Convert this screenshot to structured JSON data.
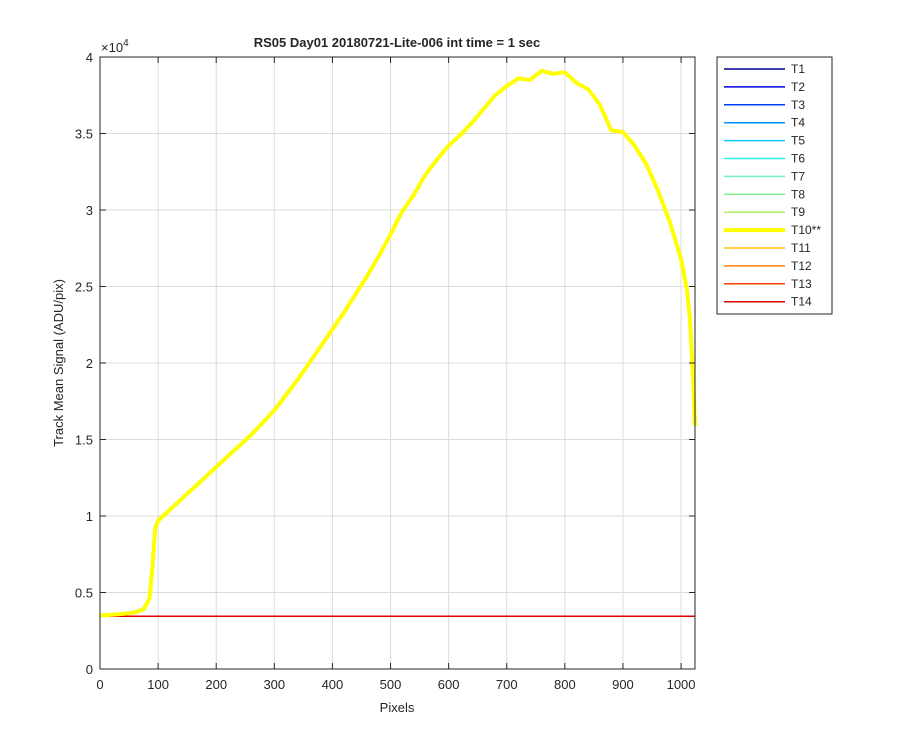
{
  "chart_data": {
    "type": "line",
    "title": "RS05 Day01 20180721-Lite-006 int time = 1 sec",
    "xlabel": "Pixels",
    "ylabel": "Track Mean Signal (ADU/pix)",
    "xlim": [
      0,
      1024
    ],
    "ylim": [
      0,
      40000
    ],
    "y_exponent_label": "×10",
    "y_exponent_power": "4",
    "xticks": [
      0,
      100,
      200,
      300,
      400,
      500,
      600,
      700,
      800,
      900,
      1000
    ],
    "xtick_labels": [
      "0",
      "100",
      "200",
      "300",
      "400",
      "500",
      "600",
      "700",
      "800",
      "900",
      "1000"
    ],
    "yticks": [
      0,
      5000,
      10000,
      15000,
      20000,
      25000,
      30000,
      35000,
      40000
    ],
    "ytick_labels": [
      "0",
      "0.5",
      "1",
      "1.5",
      "2",
      "2.5",
      "3",
      "3.5",
      "4"
    ],
    "grid": true,
    "legend_position": "outside-right",
    "series": [
      {
        "name": "T1",
        "color": "#00008f",
        "width": 1.5,
        "x": [
          0,
          1024
        ],
        "y": [
          3450,
          3450
        ]
      },
      {
        "name": "T2",
        "color": "#0000e0",
        "width": 1.5,
        "x": [
          0,
          1024
        ],
        "y": [
          3450,
          3450
        ]
      },
      {
        "name": "T3",
        "color": "#0040ff",
        "width": 1.5,
        "x": [
          0,
          1024
        ],
        "y": [
          3450,
          3450
        ]
      },
      {
        "name": "T4",
        "color": "#0090ff",
        "width": 1.5,
        "x": [
          0,
          1024
        ],
        "y": [
          3450,
          3450
        ]
      },
      {
        "name": "T5",
        "color": "#10c8ff",
        "width": 1.5,
        "x": [
          0,
          1024
        ],
        "y": [
          3450,
          3450
        ]
      },
      {
        "name": "T6",
        "color": "#30f0f0",
        "width": 1.5,
        "x": [
          0,
          1024
        ],
        "y": [
          3450,
          3450
        ]
      },
      {
        "name": "T7",
        "color": "#70f0c8",
        "width": 1.5,
        "x": [
          0,
          1024
        ],
        "y": [
          3450,
          3450
        ]
      },
      {
        "name": "T8",
        "color": "#80f090",
        "width": 1.5,
        "x": [
          0,
          1024
        ],
        "y": [
          3450,
          3450
        ]
      },
      {
        "name": "T9",
        "color": "#b0f060",
        "width": 1.5,
        "x": [
          0,
          1024
        ],
        "y": [
          3450,
          3450
        ]
      },
      {
        "name": "T10**",
        "color": "#ffff00",
        "width": 4,
        "x": [
          0,
          20,
          40,
          60,
          75,
          85,
          90,
          95,
          100,
          120,
          140,
          160,
          180,
          200,
          220,
          240,
          260,
          280,
          300,
          320,
          340,
          360,
          380,
          400,
          420,
          440,
          460,
          480,
          500,
          520,
          540,
          560,
          580,
          600,
          620,
          640,
          660,
          680,
          700,
          720,
          740,
          760,
          780,
          800,
          820,
          840,
          860,
          880,
          900,
          920,
          940,
          960,
          980,
          1000,
          1010,
          1015,
          1020,
          1024
        ],
        "y": [
          3500,
          3550,
          3600,
          3700,
          3900,
          4600,
          6500,
          9200,
          9700,
          10400,
          11100,
          11800,
          12500,
          13200,
          13900,
          14600,
          15300,
          16100,
          16900,
          17900,
          18900,
          20000,
          21100,
          22200,
          23300,
          24500,
          25700,
          27000,
          28400,
          29900,
          31000,
          32300,
          33300,
          34200,
          34900,
          35700,
          36600,
          37500,
          38100,
          38600,
          38500,
          39100,
          38900,
          39000,
          38300,
          37900,
          36900,
          35200,
          35100,
          34200,
          33000,
          31300,
          29300,
          26800,
          24800,
          23000,
          19500,
          15900
        ]
      },
      {
        "name": "T11",
        "color": "#ffc000",
        "width": 1.5,
        "x": [
          0,
          1024
        ],
        "y": [
          3450,
          3450
        ]
      },
      {
        "name": "T12",
        "color": "#ff8000",
        "width": 1.5,
        "x": [
          0,
          1024
        ],
        "y": [
          3450,
          3450
        ]
      },
      {
        "name": "T13",
        "color": "#ff4000",
        "width": 1.5,
        "x": [
          0,
          1024
        ],
        "y": [
          3450,
          3450
        ]
      },
      {
        "name": "T14",
        "color": "#e00000",
        "width": 1.5,
        "x": [
          0,
          1024
        ],
        "y": [
          3450,
          3450
        ]
      }
    ]
  }
}
